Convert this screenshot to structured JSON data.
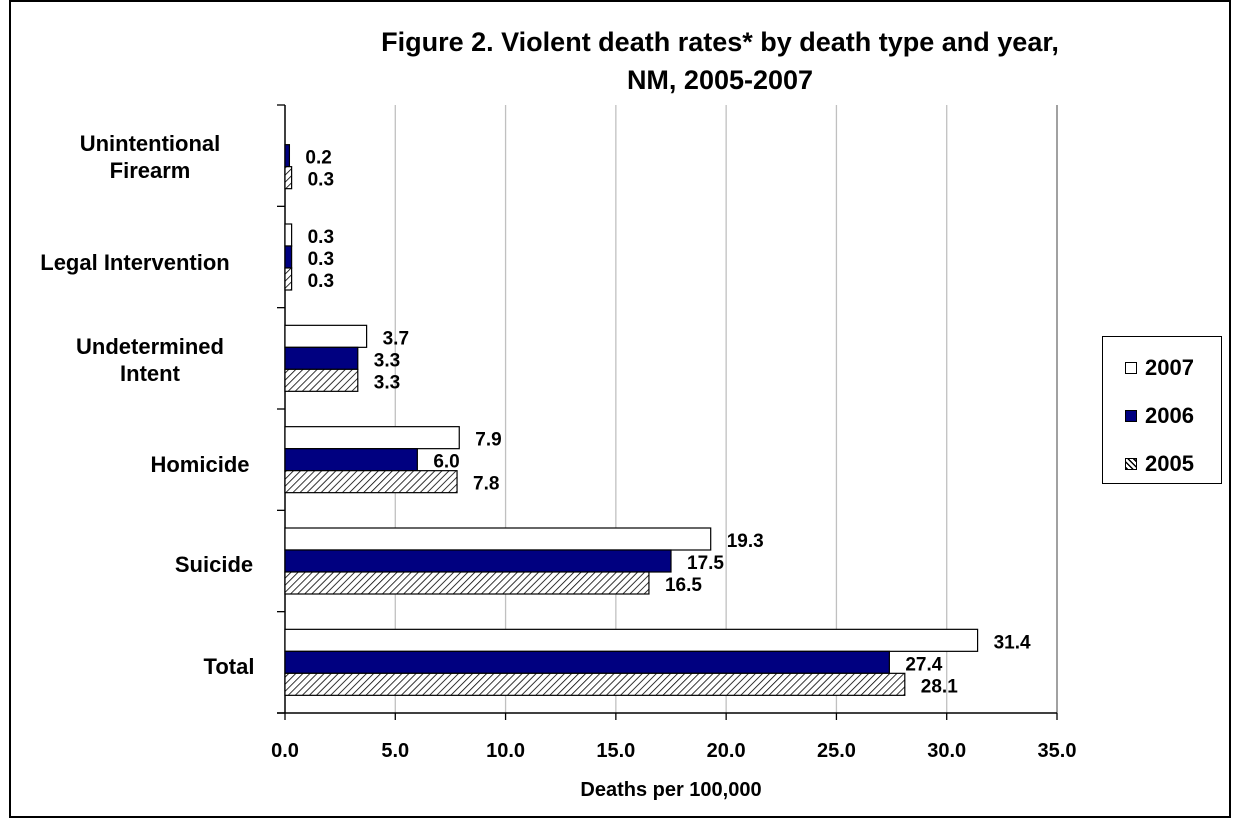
{
  "chart_data": {
    "type": "bar",
    "orientation": "horizontal",
    "title_line1": "Figure 2. Violent death rates* by death type and year,",
    "title_line2": "NM, 2005-2007",
    "xlabel": "Deaths per 100,000",
    "ylabel": "",
    "xlim": [
      0,
      35
    ],
    "x_ticks": [
      "0.0",
      "5.0",
      "10.0",
      "15.0",
      "20.0",
      "25.0",
      "30.0",
      "35.0"
    ],
    "grid": "vertical",
    "legend_placement": "right",
    "categories": [
      {
        "line1": "Unintentional",
        "line2": "Firearm"
      },
      {
        "line1": "Legal Intervention",
        "line2": ""
      },
      {
        "line1": "Undetermined",
        "line2": "Intent"
      },
      {
        "line1": "Homicide",
        "line2": ""
      },
      {
        "line1": "Suicide",
        "line2": ""
      },
      {
        "line1": "Total",
        "line2": ""
      }
    ],
    "series": [
      {
        "name": "2007",
        "pattern": "white",
        "values": [
          null,
          0.3,
          3.7,
          7.9,
          19.3,
          31.4
        ],
        "labels": [
          "",
          "0.3",
          "3.7",
          "7.9",
          "19.3",
          "31.4"
        ]
      },
      {
        "name": "2006",
        "pattern": "navy",
        "values": [
          0.2,
          0.3,
          3.3,
          6.0,
          17.5,
          27.4
        ],
        "labels": [
          "0.2",
          "0.3",
          "3.3",
          "6.0",
          "17.5",
          "27.4"
        ]
      },
      {
        "name": "2005",
        "pattern": "hatched",
        "values": [
          0.3,
          0.3,
          3.3,
          7.8,
          16.5,
          28.1
        ],
        "labels": [
          "0.3",
          "0.3",
          "3.3",
          "7.8",
          "16.5",
          "28.1"
        ]
      }
    ],
    "colors": {
      "series_2007": "#ffffff",
      "series_2006": "#000080",
      "series_2005": "#000000",
      "gridline": "#c0c0c0"
    }
  }
}
